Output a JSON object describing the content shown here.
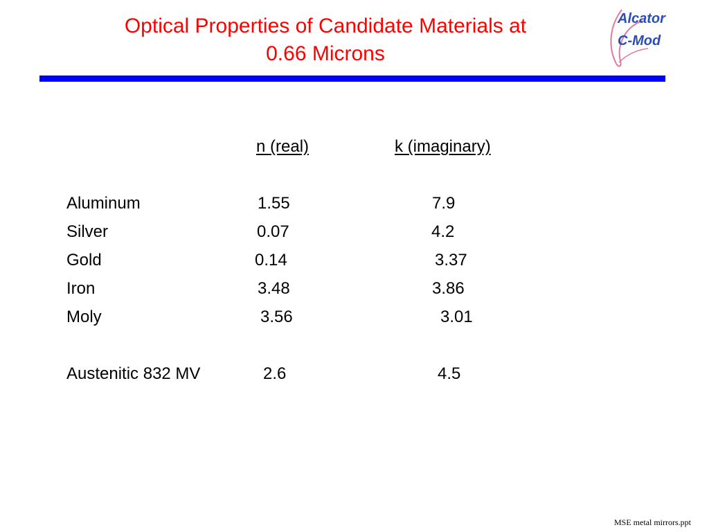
{
  "slide": {
    "title_line1": "Optical Properties of Candidate Materials at",
    "title_line2": "0.66 Microns",
    "title_color": "#ff0000",
    "rule_color": "#0000ff"
  },
  "logo": {
    "line1": "Alcator",
    "line2": "C-Mod",
    "text_color": "#2a4db8",
    "ribbon_color": "#e07a9a"
  },
  "table": {
    "headers": {
      "n": "n (real)",
      "k": "k (imaginary)"
    },
    "rows": [
      {
        "material": "Aluminum",
        "n": "1.55",
        "k": "7.9"
      },
      {
        "material": "Silver",
        "n": "0.07",
        "k": "4.2"
      },
      {
        "material": "Gold",
        "n": "0.14",
        "k": "3.37"
      },
      {
        "material": "Iron",
        "n": "3.48",
        "k": "3.86"
      },
      {
        "material": "Moly",
        "n": "3.56",
        "k": "3.01"
      },
      {
        "material": "Austenitic 832 MV",
        "n": "2.6",
        "k": "4.5"
      }
    ]
  },
  "footer": {
    "filename": "MSE metal mirrors.ppt"
  }
}
